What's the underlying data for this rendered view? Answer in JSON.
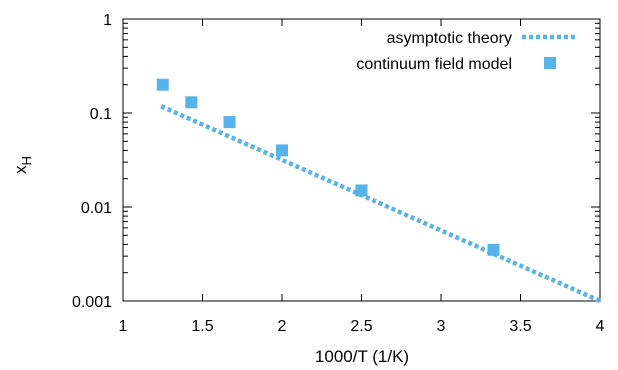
{
  "chart_data": {
    "type": "scatter",
    "title": "",
    "xlabel": "1000/T (1/K)",
    "ylabel": "x",
    "ylabel_subscript": "H",
    "xlim": [
      1,
      4
    ],
    "ylim": [
      0.001,
      1
    ],
    "yscale": "log",
    "xticks": [
      1,
      1.5,
      2,
      2.5,
      3,
      3.5,
      4
    ],
    "xtick_labels": [
      "1",
      "1.5",
      "2",
      "2.5",
      "3",
      "3.5",
      "4"
    ],
    "yticks": [
      0.001,
      0.01,
      0.1,
      1
    ],
    "ytick_labels": [
      "0.001",
      "0.01",
      "0.1",
      "1"
    ],
    "grid": false,
    "legend_position": "top-right",
    "colors": {
      "series": "#56b4e9",
      "axes": "#000000"
    },
    "series": [
      {
        "name": "asymptotic theory",
        "style": "dotted-line",
        "x": [
          1.24,
          4.0
        ],
        "y": [
          0.118,
          0.001
        ]
      },
      {
        "name": "continuum field model",
        "style": "square-markers",
        "x": [
          1.25,
          1.43,
          1.67,
          2.0,
          2.5,
          3.33
        ],
        "y": [
          0.2,
          0.13,
          0.08,
          0.04,
          0.015,
          0.0035
        ]
      }
    ]
  }
}
